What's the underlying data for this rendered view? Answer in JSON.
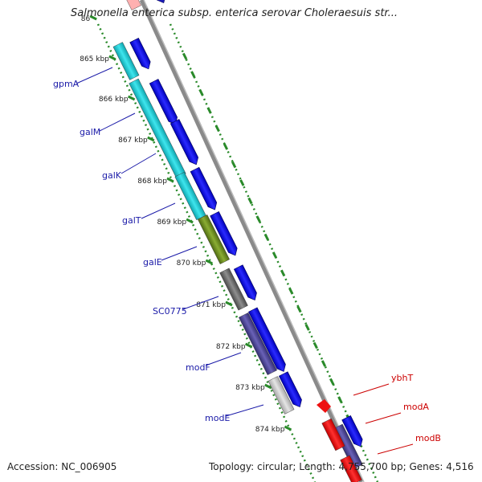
{
  "header": {
    "title": "Salmonella enterica subsp. enterica serovar Choleraesuis str..."
  },
  "footer": {
    "accession": "Accession: NC_006905",
    "summary": "Topology: circular; Length: 4,755,700 bp; Genes: 4,516"
  },
  "ticks": [
    "86",
    "865 kbp",
    "866 kbp",
    "867 kbp",
    "868 kbp",
    "869 kbp",
    "870 kbp",
    "871 kbp",
    "872 kbp",
    "873 kbp",
    "874 kbp"
  ],
  "genes_left": [
    "gpmA",
    "galM",
    "galK",
    "galT",
    "galE",
    "SC0775",
    "modF",
    "modE"
  ],
  "genes_right": [
    "ybhT",
    "modA",
    "modB"
  ],
  "colors": {
    "forward_cds": "#0000e6",
    "label_blue": "#1a1aa8",
    "label_red": "#cc0000",
    "tick_green": "#2a8a2a",
    "backbone": "#8a8a8a",
    "cyan": "#19c4cc",
    "olive": "#6b8a22",
    "grey": "#6b6b6b",
    "purple": "#4a4490",
    "light_grey": "#c4c4c4",
    "red": "#ee1111"
  }
}
